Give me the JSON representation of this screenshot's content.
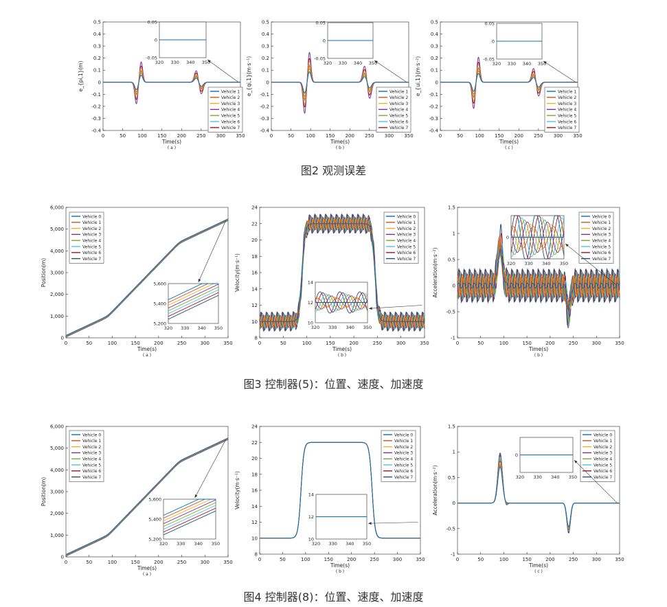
{
  "captions": {
    "fig2": "图2 观测误差",
    "fig3": "图3 控制器(5)：位置、速度、加速度",
    "fig4": "图4 控制器(8)：位置、速度、加速度"
  },
  "colors": [
    "#0072BD",
    "#D95319",
    "#EDB120",
    "#7E2F8E",
    "#77AC30",
    "#4DBEEE",
    "#A2142F",
    "#1F4E79"
  ],
  "chart_data": [
    {
      "id": "f2a",
      "type": "line",
      "ylabel": "e_{pi,1}(m)",
      "xlabel": "Time(s)",
      "sublabel": "( a )",
      "xlim": [
        0,
        350
      ],
      "ylim": [
        -0.4,
        0.5
      ],
      "xticks": [
        0,
        50,
        100,
        150,
        200,
        250,
        300,
        350
      ],
      "yticks": [
        -0.4,
        -0.3,
        -0.2,
        -0.1,
        0,
        0.1,
        0.2,
        0.3,
        0.4,
        0.5
      ],
      "ytick_labels": [
        "-0.4",
        "-0.3",
        "-0.2",
        "-0.1",
        "0",
        "0.1",
        "0.2",
        "0.3",
        "0.4",
        "0.5"
      ],
      "legend": [
        "Vehicle 1",
        "Vehicle 2",
        "Vehicle 3",
        "Vehicle 4",
        "Vehicle 5",
        "Vehicle 6",
        "Vehicle 7"
      ],
      "colors_from": 0,
      "series_model": {
        "kind": "pulses",
        "amps": [
          [
            -0.18,
            0.17,
            0.1,
            -0.1
          ]
        ],
        "scales": [
          0.35,
          0.55,
          0.7,
          1.0,
          0.45,
          0.6,
          0.8
        ]
      },
      "inset": {
        "xlim": [
          320,
          350
        ],
        "ylim": [
          -0.05,
          0.05
        ],
        "xticks": [
          320,
          330,
          340,
          350
        ],
        "yticks": [
          -0.05,
          0,
          0.05
        ],
        "ytick_labels": [
          "-0.05",
          "0",
          "0.05"
        ],
        "values": "flat"
      }
    },
    {
      "id": "f2b",
      "type": "line",
      "ylabel": "e_{qi,1}(m·s⁻¹)",
      "xlabel": "Time(s)",
      "sublabel": "( b )",
      "xlim": [
        0,
        350
      ],
      "ylim": [
        -0.4,
        0.5
      ],
      "xticks": [
        0,
        50,
        100,
        150,
        200,
        250,
        300,
        350
      ],
      "yticks": [
        -0.4,
        -0.3,
        -0.2,
        -0.1,
        0,
        0.1,
        0.2,
        0.3,
        0.4,
        0.5
      ],
      "ytick_labels": [
        "-0.4",
        "-0.3",
        "-0.2",
        "-0.1",
        "0",
        "0.1",
        "0.2",
        "0.3",
        "0.4",
        "0.5"
      ],
      "legend": [
        "Vehicle 1",
        "Vehicle 2",
        "Vehicle 3",
        "Vehicle 4",
        "Vehicle 5",
        "Vehicle 6",
        "Vehicle 7"
      ],
      "colors_from": 0,
      "series_model": {
        "kind": "pulses",
        "amps": [
          [
            -0.26,
            0.25,
            0.14,
            -0.14
          ]
        ],
        "scales": [
          0.35,
          0.55,
          0.7,
          1.0,
          0.45,
          0.6,
          0.8
        ]
      },
      "inset": {
        "xlim": [
          320,
          350
        ],
        "ylim": [
          -0.05,
          0.05
        ],
        "xticks": [
          320,
          330,
          340,
          350
        ],
        "yticks": [
          -0.05,
          0,
          0.05
        ],
        "ytick_labels": [
          "-0.05",
          "0",
          "0.05"
        ],
        "values": "flat"
      }
    },
    {
      "id": "f2c",
      "type": "line",
      "ylabel": "e_{ui,1}(m·s⁻²)",
      "xlabel": "Time(s)",
      "sublabel": "( c )",
      "xlim": [
        0,
        350
      ],
      "ylim": [
        -0.4,
        0.5
      ],
      "xticks": [
        0,
        50,
        100,
        150,
        200,
        250,
        300,
        350
      ],
      "yticks": [
        -0.4,
        -0.3,
        -0.2,
        -0.1,
        0,
        0.1,
        0.2,
        0.3,
        0.4,
        0.5
      ],
      "ytick_labels": [
        "-0.4",
        "-0.3",
        "-0.2",
        "-0.1",
        "0",
        "0.1",
        "0.2",
        "0.3",
        "0.4",
        "0.5"
      ],
      "legend": [
        "Vehicle 1",
        "Vehicle 2",
        "Vehicle 3",
        "Vehicle 4",
        "Vehicle 5",
        "Vehicle 6",
        "Vehicle 7"
      ],
      "colors_from": 0,
      "series_model": {
        "kind": "pulses",
        "amps": [
          [
            -0.22,
            0.21,
            0.12,
            -0.12
          ]
        ],
        "scales": [
          0.35,
          0.55,
          0.7,
          1.0,
          0.45,
          0.6,
          0.8
        ]
      },
      "inset": {
        "xlim": [
          320,
          350
        ],
        "ylim": [
          -0.05,
          0.05
        ],
        "xticks": [
          320,
          330,
          340,
          350
        ],
        "yticks": [
          -0.05,
          0,
          0.05
        ],
        "ytick_labels": [
          "-0.05",
          "0",
          "0.05"
        ],
        "values": "flat"
      }
    },
    {
      "id": "f3a",
      "type": "line",
      "ylabel": "Position(m)",
      "xlabel": "Time(s)",
      "sublabel": "( a )",
      "xlim": [
        0,
        350
      ],
      "ylim": [
        0,
        6000
      ],
      "xticks": [
        0,
        50,
        100,
        150,
        200,
        250,
        300,
        350
      ],
      "yticks": [
        0,
        1000,
        2000,
        3000,
        4000,
        5000,
        6000
      ],
      "ytick_labels": [
        "0",
        "1,000",
        "2,000",
        "3,000",
        "4,000",
        "5,000",
        "6,000"
      ],
      "legend": [
        "Vehicle 0",
        "Vehicle 1",
        "Vehicle 2",
        "Vehicle 3",
        "Vehicle 4",
        "Vehicle 5",
        "Vehicle 6",
        "Vehicle 7"
      ],
      "colors_from": 0,
      "series_model": {
        "kind": "position",
        "v_low": 10,
        "v_high": 22,
        "t_up": 90,
        "t_down": 245,
        "spacing": 30
      },
      "inset": {
        "xlim": [
          320,
          350
        ],
        "ylim": [
          5200,
          5600
        ],
        "xticks": [
          320,
          330,
          340,
          350
        ],
        "yticks": [
          5200,
          5400,
          5600
        ],
        "ytick_labels": [
          "5,200",
          "5,400",
          "5,600"
        ],
        "values": "position"
      }
    },
    {
      "id": "f3b",
      "type": "line",
      "ylabel": "Velocity(m·s⁻¹)",
      "xlabel": "Time(s)",
      "sublabel": "( b )",
      "xlim": [
        0,
        350
      ],
      "ylim": [
        8,
        24
      ],
      "xticks": [
        0,
        50,
        100,
        150,
        200,
        250,
        300,
        350
      ],
      "yticks": [
        8,
        10,
        12,
        14,
        16,
        18,
        20,
        22,
        24
      ],
      "ytick_labels": [
        "8",
        "10",
        "12",
        "14",
        "16",
        "18",
        "20",
        "22",
        "24"
      ],
      "legend": [
        "Vehicle 0",
        "Vehicle 1",
        "Vehicle 2",
        "Vehicle 3",
        "Vehicle 4",
        "Vehicle 5",
        "Vehicle 6",
        "Vehicle 7"
      ],
      "colors_from": 0,
      "series_model": {
        "kind": "velocity",
        "v_low": 10,
        "v_high": 22,
        "t_up": 90,
        "t_down": 245,
        "osc": 1.0
      },
      "inset": {
        "xlim": [
          320,
          350
        ],
        "ylim": [
          10,
          14
        ],
        "xticks": [
          320,
          330,
          340,
          350
        ],
        "yticks": [
          10,
          12,
          14
        ],
        "ytick_labels": [
          "10",
          "12",
          "14"
        ],
        "values": "velocity_osc"
      }
    },
    {
      "id": "f3c",
      "type": "line",
      "ylabel": "Acceleration(m·s⁻²)",
      "xlabel": "Time(s)",
      "sublabel": "( b )",
      "xlim": [
        0,
        350
      ],
      "ylim": [
        -1,
        1.5
      ],
      "xticks": [
        0,
        50,
        100,
        150,
        200,
        250,
        300,
        350
      ],
      "yticks": [
        -1,
        -0.5,
        0,
        0.5,
        1,
        1.5
      ],
      "ytick_labels": [
        "-1",
        "-0.5",
        "0",
        "0.5",
        "1",
        "1.5"
      ],
      "legend": [
        "Vehicle 0",
        "Vehicle 1",
        "Vehicle 2",
        "Vehicle 3",
        "Vehicle 4",
        "Vehicle 5",
        "Vehicle 6",
        "Vehicle 7"
      ],
      "colors_from": 0,
      "series_model": {
        "kind": "accel",
        "peak": 0.9,
        "trough": -0.55,
        "osc": 0.3
      },
      "inset": {
        "xlim": [
          320,
          350
        ],
        "ylim": [
          -0.3,
          0.3
        ],
        "xticks": [
          320,
          330,
          340,
          350
        ],
        "yticks": [
          0
        ],
        "ytick_labels": [
          "0"
        ],
        "values": "accel_osc"
      }
    },
    {
      "id": "f4a",
      "type": "line",
      "ylabel": "Position(m)",
      "xlabel": "Time(s)",
      "sublabel": "( a )",
      "xlim": [
        0,
        350
      ],
      "ylim": [
        0,
        6000
      ],
      "xticks": [
        0,
        50,
        100,
        150,
        200,
        250,
        300,
        350
      ],
      "yticks": [
        0,
        1000,
        2000,
        3000,
        4000,
        5000,
        6000
      ],
      "ytick_labels": [
        "0",
        "1,000",
        "2,000",
        "3,000",
        "4,000",
        "5,000",
        "6,000"
      ],
      "legend": [
        "Vehicle 0",
        "Vehicle 1",
        "Vehicle 2",
        "Vehicle 3",
        "Vehicle 4",
        "Vehicle 5",
        "Vehicle 6",
        "Vehicle 7"
      ],
      "colors_from": 0,
      "series_model": {
        "kind": "position",
        "v_low": 10,
        "v_high": 22,
        "t_up": 90,
        "t_down": 245,
        "spacing": 30
      },
      "inset": {
        "xlim": [
          320,
          350
        ],
        "ylim": [
          5200,
          5600
        ],
        "xticks": [
          320,
          330,
          340,
          350
        ],
        "yticks": [
          5200,
          5400,
          5600
        ],
        "ytick_labels": [
          "5,200",
          "5,400",
          "5,600"
        ],
        "values": "position"
      }
    },
    {
      "id": "f4b",
      "type": "line",
      "ylabel": "Velocity(m·s⁻¹)",
      "xlabel": "Time(s)",
      "sublabel": "( b )",
      "xlim": [
        0,
        350
      ],
      "ylim": [
        8,
        24
      ],
      "xticks": [
        0,
        50,
        100,
        150,
        200,
        250,
        300,
        350
      ],
      "yticks": [
        8,
        10,
        12,
        14,
        16,
        18,
        20,
        22,
        24
      ],
      "ytick_labels": [
        "8",
        "10",
        "12",
        "14",
        "16",
        "18",
        "20",
        "22",
        "24"
      ],
      "legend": [
        "Vehicle 0",
        "Vehicle 1",
        "Vehicle 2",
        "Vehicle 3",
        "Vehicle 4",
        "Vehicle 5",
        "Vehicle 6",
        "Vehicle 7"
      ],
      "colors_from": 0,
      "series_model": {
        "kind": "velocity",
        "v_low": 10,
        "v_high": 22,
        "t_up": 90,
        "t_down": 245,
        "osc": 0
      },
      "inset": {
        "xlim": [
          320,
          350
        ],
        "ylim": [
          10,
          14
        ],
        "xticks": [
          320,
          330,
          340,
          350
        ],
        "yticks": [
          10,
          12,
          14
        ],
        "ytick_labels": [
          "10",
          "12",
          "14"
        ],
        "values": "velocity_flat"
      }
    },
    {
      "id": "f4c",
      "type": "line",
      "ylabel": "Acceleration(m·s⁻²)",
      "xlabel": "Time(s)",
      "sublabel": "( c )",
      "xlim": [
        0,
        350
      ],
      "ylim": [
        -1,
        1.5
      ],
      "xticks": [
        0,
        50,
        100,
        150,
        200,
        250,
        300,
        350
      ],
      "yticks": [
        -1,
        -0.5,
        0,
        0.5,
        1,
        1.5
      ],
      "ytick_labels": [
        "-1",
        "-0.5",
        "0",
        "0.5",
        "1",
        "1.5"
      ],
      "legend": [
        "Vehicle 0",
        "Vehicle 1",
        "Vehicle 2",
        "Vehicle 3",
        "Vehicle 4",
        "Vehicle 5",
        "Vehicle 6",
        "Vehicle 7"
      ],
      "colors_from": 0,
      "series_model": {
        "kind": "accel",
        "peak": 0.95,
        "trough": -0.58,
        "osc": 0
      },
      "inset": {
        "xlim": [
          320,
          350
        ],
        "ylim": [
          -0.3,
          0.3
        ],
        "xticks": [
          320,
          330,
          340,
          350
        ],
        "yticks": [
          0
        ],
        "ytick_labels": [
          "0"
        ],
        "values": "flat"
      }
    }
  ]
}
